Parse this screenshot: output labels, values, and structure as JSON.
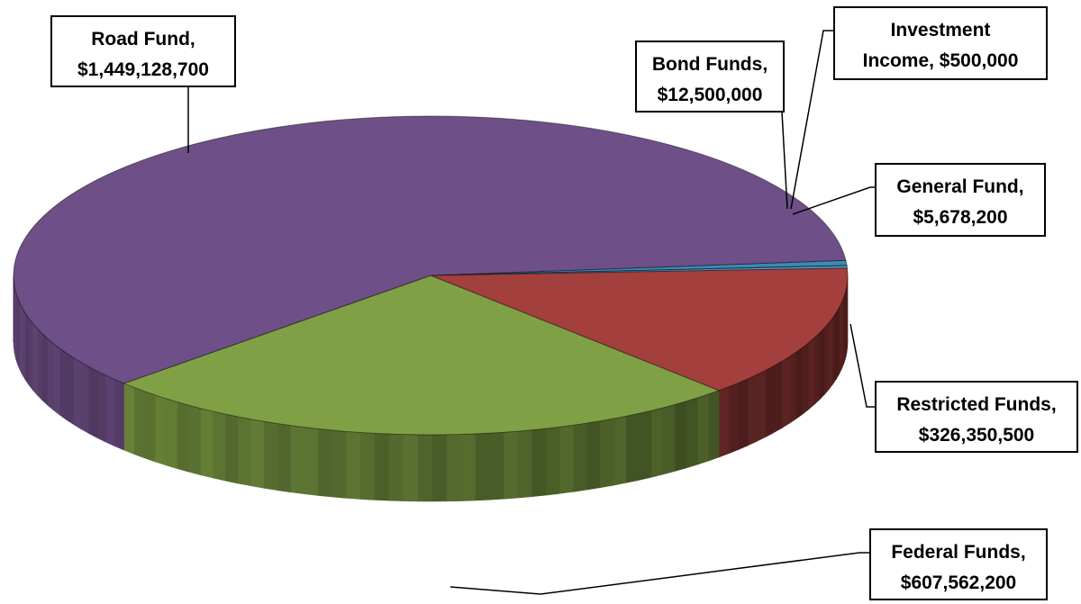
{
  "chart_data": {
    "type": "pie",
    "title": "",
    "style": "3d",
    "slices": [
      {
        "label": "Road Fund",
        "value_text": "$1,449,128,700",
        "value": 1449128700,
        "color": "#6e4f87"
      },
      {
        "label": "Bond Funds",
        "value_text": "$12,500,000",
        "value": 12500000,
        "color": "#3a8bb5"
      },
      {
        "label": "Investment Income",
        "value_text": "$500,000",
        "value": 500000,
        "color": "#d88a3a"
      },
      {
        "label": "General Fund",
        "value_text": "$5,678,200",
        "value": 5678200,
        "color": "#5b9ed6"
      },
      {
        "label": "Restricted Funds",
        "value_text": "$326,350,500",
        "value": 326350500,
        "color": "#a33f3c"
      },
      {
        "label": "Federal Funds",
        "value_text": "$607,562,200",
        "value": 607562200,
        "color": "#7fa045"
      }
    ],
    "callouts": [
      {
        "line1": "Road Fund,",
        "line2": "$1,449,128,700"
      },
      {
        "line1": "Bond Funds,",
        "line2": "$12,500,000"
      },
      {
        "line1": "Investment",
        "line2": "Income, $500,000"
      },
      {
        "line1": "General Fund,",
        "line2": "$5,678,200"
      },
      {
        "line1": "Restricted Funds,",
        "line2": "$326,350,500"
      },
      {
        "line1": "Federal Funds,",
        "line2": "$607,562,200"
      }
    ]
  }
}
